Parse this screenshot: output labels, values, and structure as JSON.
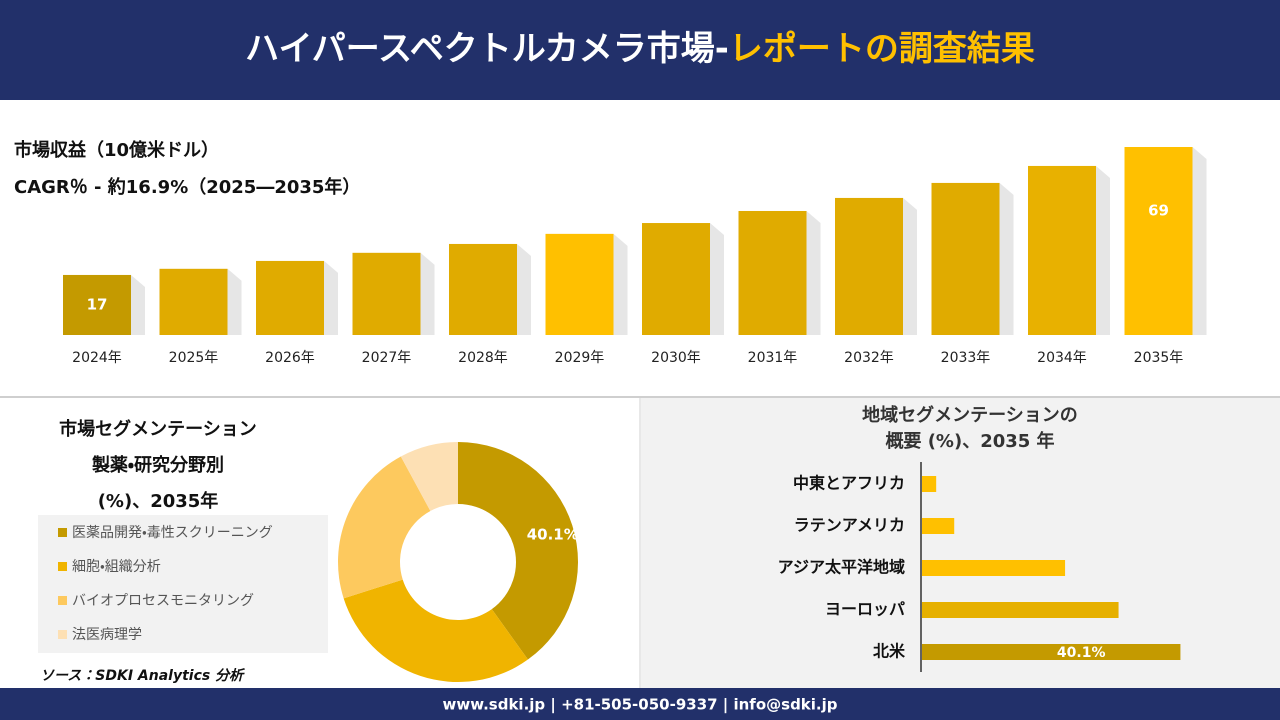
{
  "header": {
    "title": "ハイパースペクトルカメラ市場-",
    "title_highlight": "レポートの調査結果"
  },
  "chart_data": [
    {
      "type": "bar",
      "title": "市場収益（10億米ドル）",
      "subtitle": "CAGR％ - 約16.9%（2025―2035年）",
      "categories": [
        "2024年",
        "2025年",
        "2026年",
        "2027年",
        "2028年",
        "2029年",
        "2030年",
        "2031年",
        "2032年",
        "2033年",
        "2034年",
        "2035年"
      ],
      "values": [
        17,
        19.5,
        22.7,
        26.0,
        29.6,
        33.7,
        38.1,
        43.0,
        48.3,
        54.4,
        61.3,
        69
      ],
      "value_labels": [
        "17",
        null,
        null,
        null,
        null,
        null,
        null,
        null,
        null,
        null,
        null,
        "69"
      ],
      "colors": [
        "#c49a00",
        "#e0ab00",
        "#e0ab00",
        "#e0ab00",
        "#e0ab00",
        "#ffc000",
        "#e0ab00",
        "#e0ab00",
        "#e0ab00",
        "#e0ab00",
        "#e8b100",
        "#ffc000"
      ],
      "ylim": [
        -7.4,
        69
      ]
    },
    {
      "type": "donut",
      "title": [
        "市場セグメンテーション",
        "製薬・研究分野別",
        "(%)、2035年"
      ],
      "categories": [
        "医薬品開発・毒性スクリーニング",
        "細胞・組織分析",
        "バイオプロセスモニタリング",
        "法医病理学"
      ],
      "values": [
        40.1,
        30,
        22,
        7.9
      ],
      "value_labels": [
        "40.1%",
        null,
        null,
        null
      ],
      "colors": [
        "#c49a00",
        "#f0b400",
        "#fdc95e",
        "#fde0b4"
      ]
    },
    {
      "type": "hbar",
      "title": [
        "地域セグメンテーションの",
        "概要 (%)、2035 年"
      ],
      "categories": [
        "中東とアフリカ",
        "ラテンアメリカ",
        "アジア太平洋地域",
        "ヨーロッパ",
        "北米"
      ],
      "values": [
        2.2,
        5.0,
        22.2,
        30.5,
        40.1
      ],
      "value_labels": [
        null,
        null,
        null,
        null,
        "40.1%"
      ],
      "colors": [
        "#ffc000",
        "#ffc000",
        "#ffc000",
        "#e6b000",
        "#c49a00"
      ],
      "xlim": [
        0,
        45
      ]
    }
  ],
  "source": "ソース：SDKI Analytics 分析",
  "footer": "www.sdki.jp | +81-505-050-9337 | info@sdki.jp"
}
